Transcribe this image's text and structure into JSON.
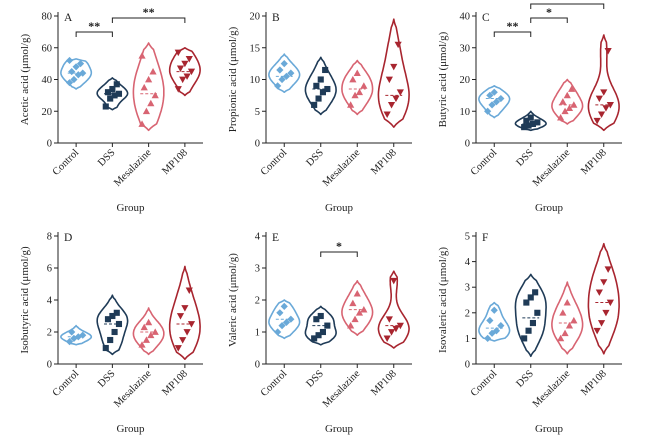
{
  "colors": {
    "Control": "#6aa9d8",
    "DSS": "#1f3b57",
    "Mesalazine": "#d86472",
    "MP108": "#a8252f"
  },
  "chart_data": [
    {
      "type": "violin",
      "panel": "A",
      "ylabel": "Acetic acid (μmol/g)",
      "xlabel": "Group",
      "categories": [
        "Control",
        "DSS",
        "Mesalazine",
        "MP108"
      ],
      "ylim": [
        0,
        80
      ],
      "yticks": [
        0,
        20,
        40,
        60,
        80
      ],
      "violin_range": [
        [
          34,
          53
        ],
        [
          21,
          41
        ],
        [
          8,
          63
        ],
        [
          30,
          60
        ]
      ],
      "median": [
        44,
        31,
        31,
        45
      ],
      "points": [
        [
          38,
          40,
          43,
          44,
          45,
          48,
          50,
          52
        ],
        [
          23,
          28,
          30,
          31,
          32,
          34,
          37
        ],
        [
          12,
          20,
          25,
          30,
          35,
          40,
          45,
          55
        ],
        [
          34,
          40,
          42,
          45,
          47,
          50,
          53,
          57
        ]
      ],
      "markers": [
        "diamond",
        "square",
        "triangle",
        "triangle-down"
      ],
      "significance": [
        {
          "from": 0,
          "to": 1,
          "level": 1,
          "label": "**"
        },
        {
          "from": 1,
          "to": 3,
          "level": 2,
          "label": "**"
        }
      ]
    },
    {
      "type": "violin",
      "panel": "B",
      "ylabel": "Propionic acid (μmol/g)",
      "xlabel": "Group",
      "categories": [
        "Control",
        "DSS",
        "Mesalazine",
        "MP108"
      ],
      "ylim": [
        0,
        20
      ],
      "yticks": [
        0,
        5,
        10,
        15,
        20
      ],
      "violin_range": [
        [
          8,
          14
        ],
        [
          4.5,
          13.5
        ],
        [
          4.5,
          13
        ],
        [
          2.5,
          19.5
        ]
      ],
      "median": [
        10.5,
        8.5,
        8.5,
        7.5
      ],
      "points": [
        [
          9,
          10,
          10.5,
          11,
          11.5,
          12.5
        ],
        [
          6,
          7,
          8,
          8.5,
          9,
          10,
          11.5
        ],
        [
          6,
          7.5,
          8,
          9,
          10,
          11
        ],
        [
          4.5,
          6,
          7,
          8,
          10,
          12,
          15.5
        ]
      ],
      "markers": [
        "diamond",
        "square",
        "triangle",
        "triangle-down"
      ],
      "significance": []
    },
    {
      "type": "violin",
      "panel": "C",
      "ylabel": "Butyric acid (μmol/g)",
      "xlabel": "Group",
      "categories": [
        "Control",
        "DSS",
        "Mesalazine",
        "MP108"
      ],
      "ylim": [
        0,
        40
      ],
      "yticks": [
        0,
        10,
        20,
        30,
        40
      ],
      "violin_range": [
        [
          8,
          18
        ],
        [
          4,
          10
        ],
        [
          6,
          20
        ],
        [
          4,
          34
        ]
      ],
      "median": [
        14,
        6,
        12,
        12
      ],
      "points": [
        [
          10,
          12,
          13,
          14,
          15,
          16
        ],
        [
          5,
          5.5,
          6,
          6.5,
          7,
          8
        ],
        [
          8,
          10,
          11,
          12,
          13,
          15,
          17
        ],
        [
          7,
          9,
          11,
          12,
          14,
          16,
          29
        ]
      ],
      "markers": [
        "diamond",
        "square",
        "triangle",
        "triangle-down"
      ],
      "significance": [
        {
          "from": 0,
          "to": 1,
          "level": 1,
          "label": "**"
        },
        {
          "from": 1,
          "to": 2,
          "level": 2,
          "label": "*"
        },
        {
          "from": 1,
          "to": 3,
          "level": 3,
          "label": "**"
        }
      ]
    },
    {
      "type": "violin",
      "panel": "D",
      "ylabel": "Isobutyric acid (μmol/g)",
      "xlabel": "Group",
      "categories": [
        "Control",
        "DSS",
        "Mesalazine",
        "MP108"
      ],
      "ylim": [
        0,
        8
      ],
      "yticks": [
        0,
        2,
        4,
        6,
        8
      ],
      "violin_range": [
        [
          1.2,
          2.4
        ],
        [
          0.6,
          4.3
        ],
        [
          0.6,
          3.5
        ],
        [
          0.3,
          6.1
        ]
      ],
      "median": [
        1.7,
        2.5,
        2.0,
        2.5
      ],
      "points": [
        [
          1.4,
          1.6,
          1.7,
          1.8,
          2.0
        ],
        [
          1.0,
          1.5,
          2.0,
          2.5,
          2.8,
          3.0,
          3.2
        ],
        [
          1.2,
          1.5,
          1.8,
          2.0,
          2.3,
          2.6
        ],
        [
          1.0,
          1.5,
          2.0,
          2.5,
          3.0,
          3.5,
          4.6
        ]
      ],
      "markers": [
        "diamond",
        "square",
        "triangle",
        "triangle-down"
      ],
      "significance": []
    },
    {
      "type": "violin",
      "panel": "E",
      "ylabel": "Valeric acid (μmol/g)",
      "xlabel": "Group",
      "categories": [
        "Control",
        "DSS",
        "Mesalazine",
        "MP108"
      ],
      "ylim": [
        0,
        4
      ],
      "yticks": [
        0,
        1,
        2,
        3,
        4
      ],
      "violin_range": [
        [
          0.8,
          2.0
        ],
        [
          0.6,
          1.8
        ],
        [
          0.9,
          2.6
        ],
        [
          0.5,
          2.9
        ]
      ],
      "median": [
        1.4,
        1.2,
        1.7,
        1.2
      ],
      "points": [
        [
          1.0,
          1.2,
          1.3,
          1.4,
          1.6,
          1.8
        ],
        [
          0.8,
          0.9,
          1.0,
          1.2,
          1.4,
          1.5
        ],
        [
          1.2,
          1.4,
          1.6,
          1.7,
          1.9,
          2.2
        ],
        [
          0.8,
          1.0,
          1.1,
          1.2,
          1.4,
          2.6
        ]
      ],
      "markers": [
        "diamond",
        "square",
        "triangle",
        "triangle-down"
      ],
      "significance": [
        {
          "from": 1,
          "to": 2,
          "level": 1,
          "label": "*"
        }
      ]
    },
    {
      "type": "violin",
      "panel": "F",
      "ylabel": "Isovaleric acid (μmol/g)",
      "xlabel": "Group",
      "categories": [
        "Control",
        "DSS",
        "Mesalazine",
        "MP108"
      ],
      "ylim": [
        0,
        5
      ],
      "yticks": [
        0,
        1,
        2,
        3,
        4,
        5
      ],
      "violin_range": [
        [
          0.9,
          2.4
        ],
        [
          0.3,
          3.5
        ],
        [
          0.4,
          3.2
        ],
        [
          0.4,
          4.7
        ]
      ],
      "median": [
        1.4,
        1.8,
        1.6,
        2.4
      ],
      "points": [
        [
          1.0,
          1.2,
          1.3,
          1.5,
          1.7,
          2.1
        ],
        [
          1.0,
          1.3,
          1.6,
          2.0,
          2.4,
          2.6,
          2.8
        ],
        [
          1.0,
          1.2,
          1.5,
          1.7,
          2.0,
          2.4
        ],
        [
          1.3,
          1.6,
          2.0,
          2.4,
          2.8,
          3.2,
          3.7
        ]
      ],
      "markers": [
        "diamond",
        "square",
        "triangle",
        "triangle-down"
      ],
      "significance": []
    }
  ]
}
